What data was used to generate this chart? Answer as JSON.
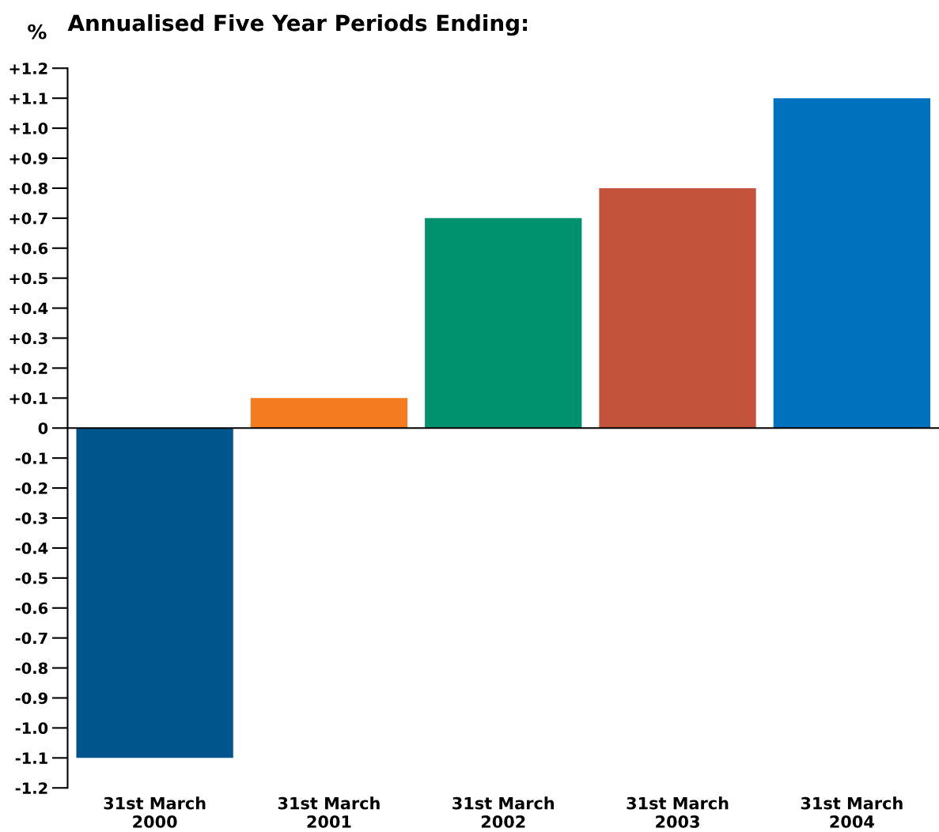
{
  "chart_data": {
    "type": "bar",
    "title": "Annualised Five Year Periods Ending:",
    "ylabel": "%",
    "categories": [
      "31st March\n2000",
      "31st March\n2001",
      "31st March\n2002",
      "31st March\n2003",
      "31st March\n2004"
    ],
    "values": [
      -1.1,
      0.1,
      0.7,
      0.8,
      1.1
    ],
    "colors": [
      "#00558c",
      "#f47b20",
      "#00926f",
      "#c3533b",
      "#0071bc"
    ],
    "ylim": [
      -1.2,
      1.2
    ],
    "yticks": [
      {
        "value": 1.2,
        "label": "+1.2"
      },
      {
        "value": 1.1,
        "label": "+1.1"
      },
      {
        "value": 1.0,
        "label": "+1.0"
      },
      {
        "value": 0.9,
        "label": "+0.9"
      },
      {
        "value": 0.8,
        "label": "+0.8"
      },
      {
        "value": 0.7,
        "label": "+0.7"
      },
      {
        "value": 0.6,
        "label": "+0.6"
      },
      {
        "value": 0.5,
        "label": "+0.5"
      },
      {
        "value": 0.4,
        "label": "+0.4"
      },
      {
        "value": 0.3,
        "label": "+0.3"
      },
      {
        "value": 0.2,
        "label": "+0.2"
      },
      {
        "value": 0.1,
        "label": "+0.1"
      },
      0,
      -0.1,
      -0.2,
      -0.3,
      -0.4,
      -0.5,
      -0.6,
      -0.7,
      -0.8,
      -0.9,
      {
        "value": -1.0,
        "label": "-1.0"
      },
      -1.1,
      -1.2
    ]
  }
}
